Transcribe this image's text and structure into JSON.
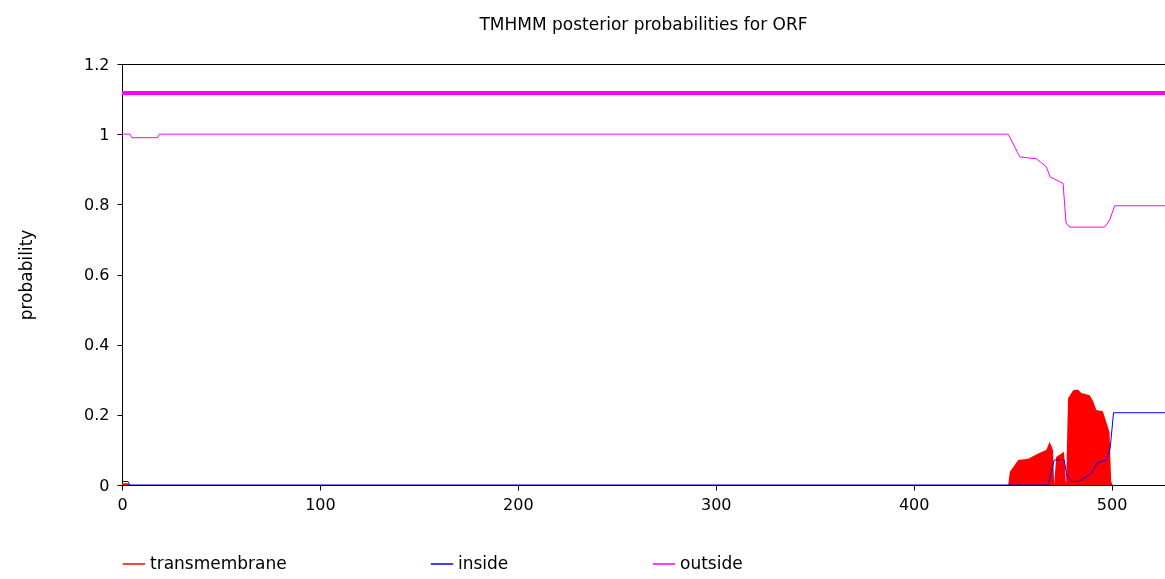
{
  "chart_data": {
    "type": "line",
    "title": "TMHMM posterior probabilities for ORF",
    "ylabel": "probability",
    "xlim": [
      0,
      527
    ],
    "ylim": [
      0,
      1.2
    ],
    "xticks": [
      0,
      100,
      200,
      300,
      400,
      500
    ],
    "yticks": [
      0,
      0.2,
      0.4,
      0.6,
      0.8,
      1,
      1.2
    ],
    "grid": false,
    "legend": "bottom",
    "line_style": "solid",
    "marker": "none",
    "series": [
      {
        "name": "transmembrane",
        "type": "area",
        "color": "#ff0000",
        "x": [
          0,
          3,
          4,
          447.8,
          448.6,
          452.8,
          457.8,
          462.9,
          467,
          468.7,
          470.4,
          471,
          472,
          476,
          477,
          478,
          480.6,
          483,
          484.7,
          489,
          490.6,
          492.3,
          495.6,
          497.3,
          499,
          499.8,
          500.6,
          527
        ],
        "values": [
          0.005,
          0.005,
          0,
          0,
          0.038,
          0.071,
          0.075,
          0.09,
          0.1,
          0.123,
          0.1,
          0,
          0.08,
          0.095,
          0,
          0.247,
          0.27,
          0.272,
          0.262,
          0.256,
          0.24,
          0.214,
          0.21,
          0.18,
          0.15,
          0.01,
          0,
          0
        ]
      },
      {
        "name": "inside",
        "color": "#0000ff",
        "x": [
          0,
          3,
          4,
          468,
          471,
          474,
          476,
          477.5,
          480,
          483.5,
          490,
          492.6,
          497.6,
          499.3,
          501,
          527
        ],
        "values": [
          0.01,
          0.01,
          0,
          0,
          0.071,
          0.072,
          0.072,
          0.024,
          0.01,
          0.01,
          0.034,
          0.062,
          0.072,
          0.105,
          0.206,
          0.206
        ]
      },
      {
        "name": "outside",
        "color": "#ff00ff",
        "x": [
          0,
          4,
          5,
          18,
          19,
          447.8,
          453.7,
          462,
          467,
          469,
          475.5,
          477,
          479,
          496.5,
          499,
          501.6,
          527
        ],
        "values": [
          1,
          1,
          0.99,
          0.99,
          1,
          1,
          0.935,
          0.93,
          0.907,
          0.878,
          0.86,
          0.746,
          0.735,
          0.735,
          0.755,
          0.796,
          0.796
        ]
      },
      {
        "color": "#ff00ff",
        "x": [
          0,
          527
        ],
        "values": [
          1.117,
          1.117
        ]
      }
    ]
  }
}
